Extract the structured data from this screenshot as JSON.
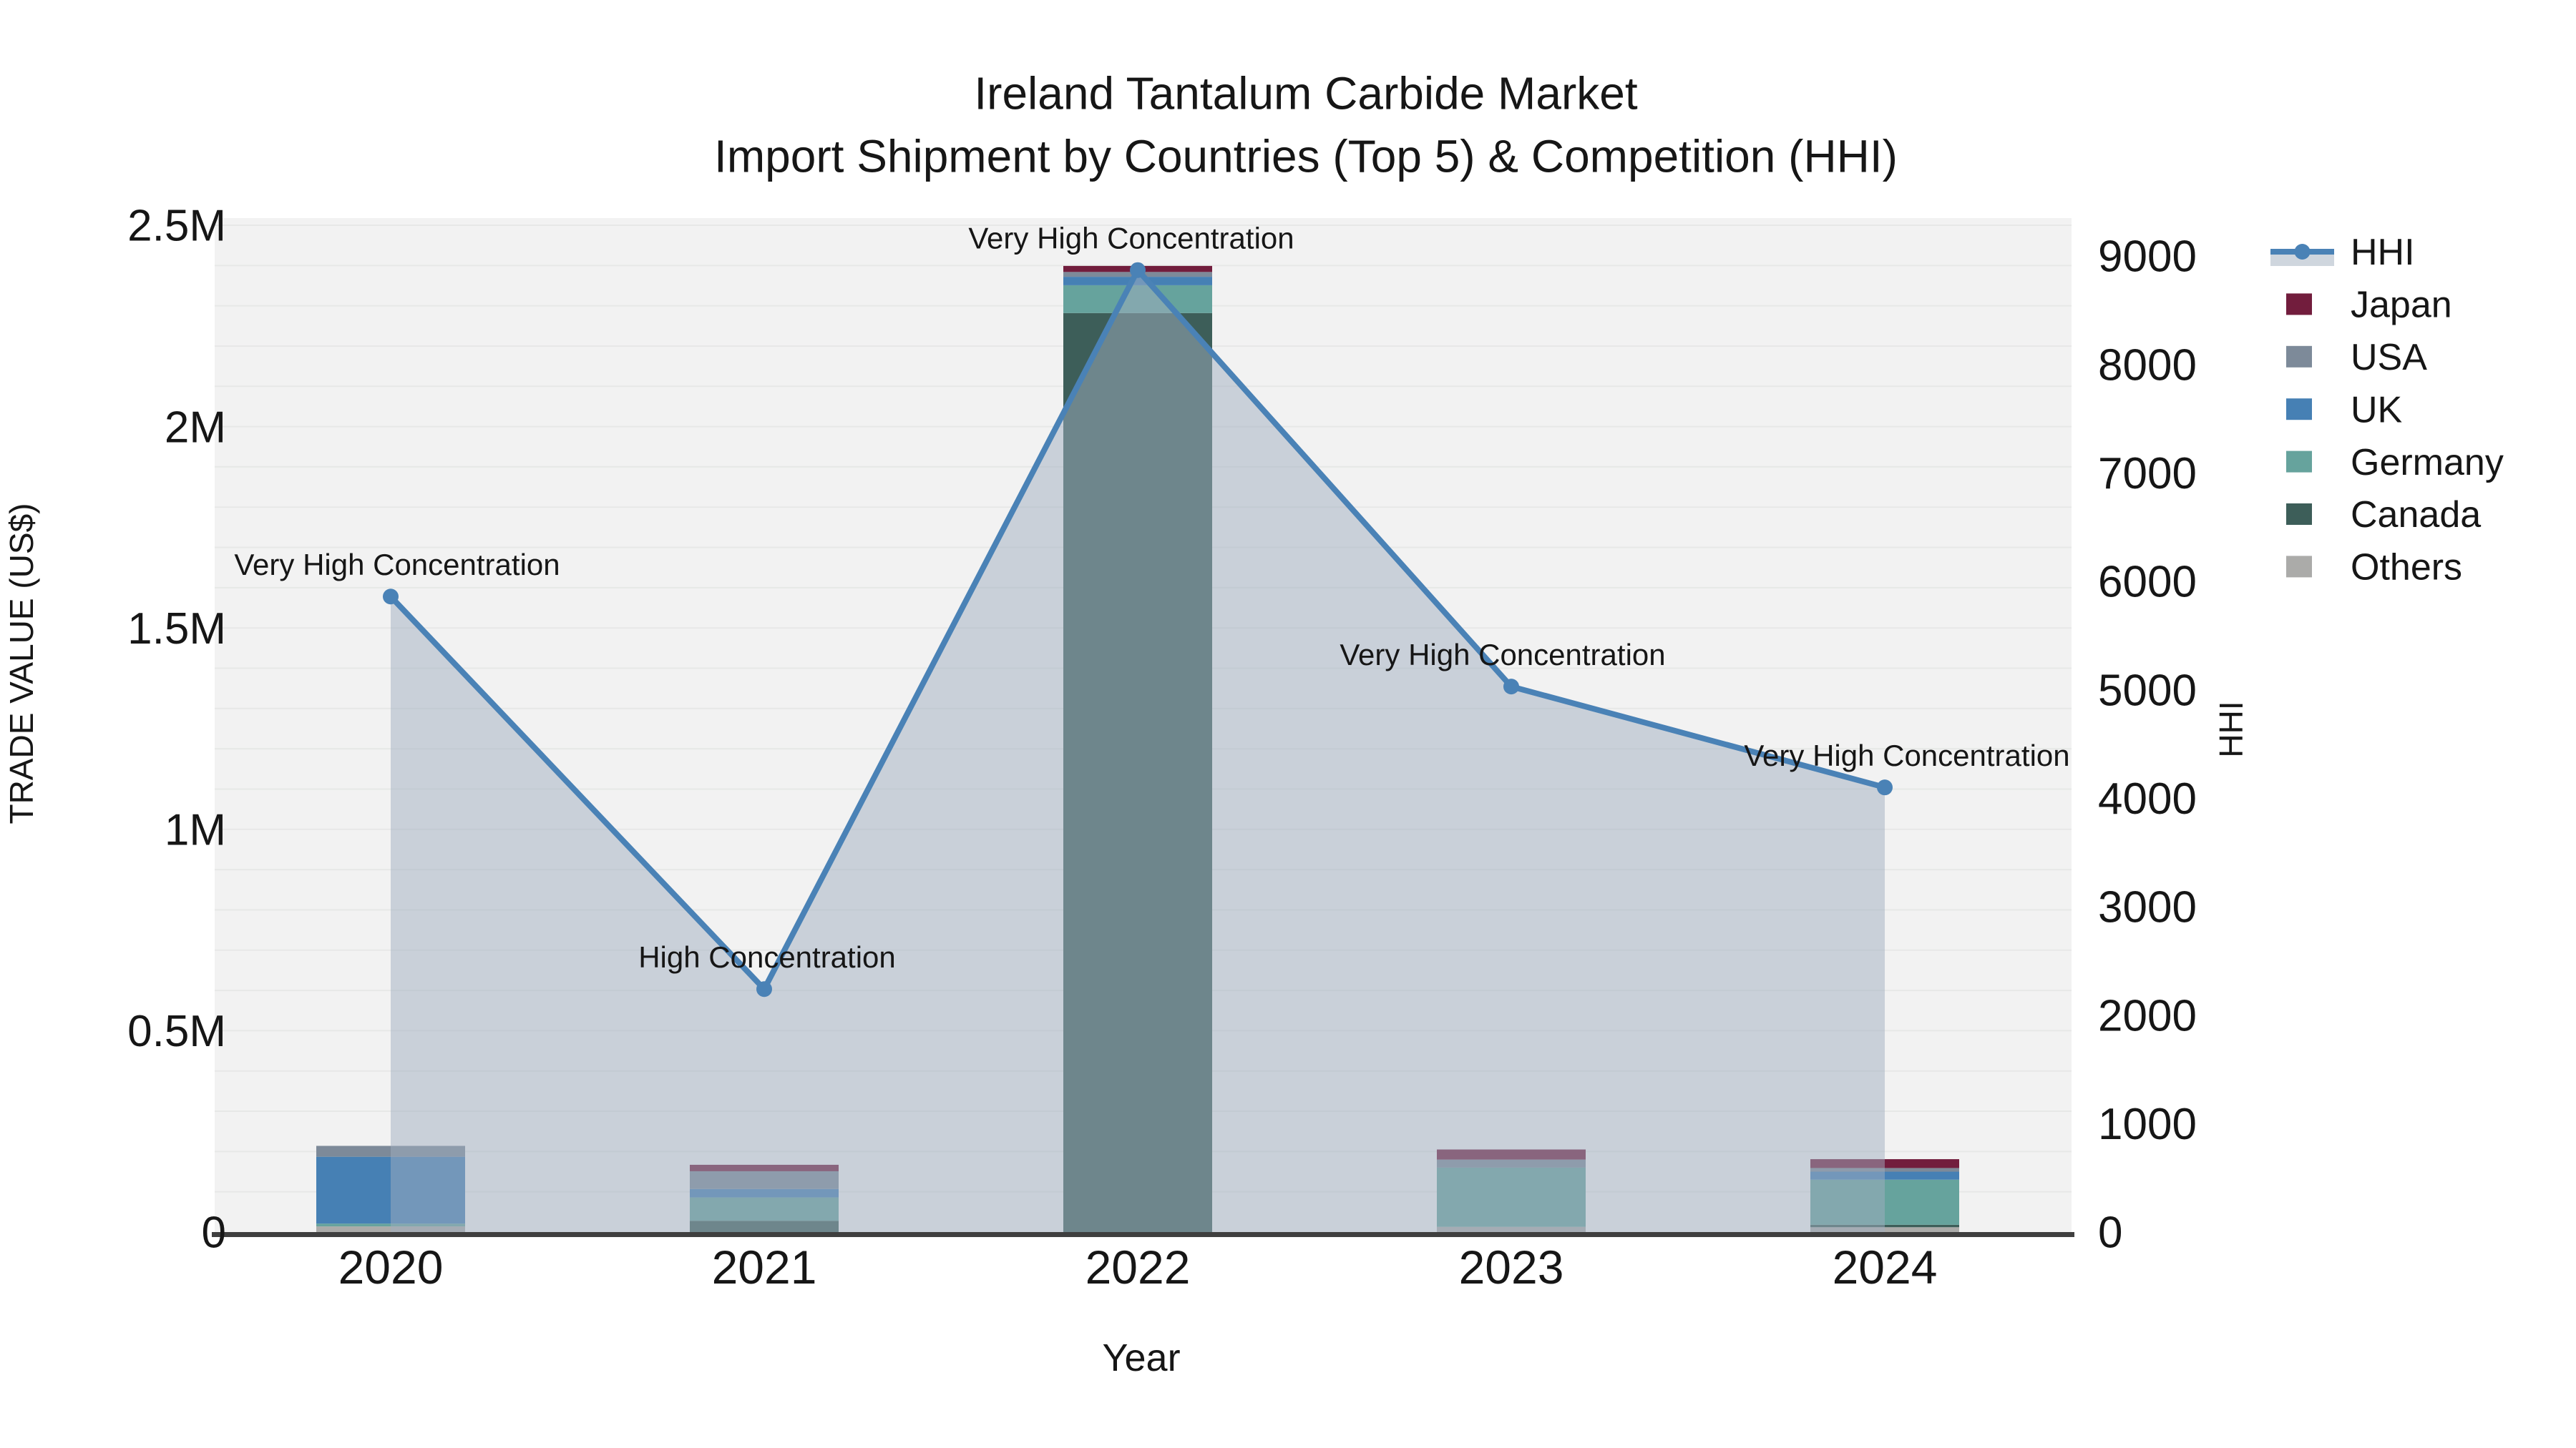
{
  "title": {
    "line1": "Ireland Tantalum Carbide Market",
    "line2": "Import Shipment by Countries (Top 5) & Competition (HHI)"
  },
  "axes": {
    "x": {
      "title": "Year",
      "ticks": [
        "2020",
        "2021",
        "2022",
        "2023",
        "2024"
      ]
    },
    "y_left": {
      "title": "TRADE VALUE (US$)",
      "tick_labels": [
        "0",
        "0.5M",
        "1M",
        "1.5M",
        "2M",
        "2.5M"
      ],
      "tick_values": [
        0,
        500000,
        1000000,
        1500000,
        2000000,
        2500000
      ],
      "range": [
        0,
        2500000
      ]
    },
    "y_right": {
      "title": "HHI",
      "tick_labels": [
        "0",
        "1000",
        "2000",
        "3000",
        "4000",
        "5000",
        "6000",
        "7000",
        "8000",
        "9000"
      ],
      "tick_values": [
        0,
        1000,
        2000,
        3000,
        4000,
        5000,
        6000,
        7000,
        8000,
        9000
      ],
      "range": [
        0,
        9000
      ]
    }
  },
  "legend": {
    "items": [
      {
        "label": "HHI",
        "type": "line",
        "color": "#4a82b6",
        "band_color": "#cfd6de"
      },
      {
        "label": "Japan",
        "type": "bar",
        "color": "#721d3d"
      },
      {
        "label": "USA",
        "type": "bar",
        "color": "#7d8a99"
      },
      {
        "label": "UK",
        "type": "bar",
        "color": "#4680b4"
      },
      {
        "label": "Germany",
        "type": "bar",
        "color": "#66a39d"
      },
      {
        "label": "Canada",
        "type": "bar",
        "color": "#3d5e59"
      },
      {
        "label": "Others",
        "type": "bar",
        "color": "#ababa9"
      }
    ]
  },
  "annotations": [
    {
      "year": "2020",
      "text": "Very High Concentration"
    },
    {
      "year": "2021",
      "text": "High Concentration"
    },
    {
      "year": "2022",
      "text": "Very High Concentration"
    },
    {
      "year": "2023",
      "text": "Very High Concentration"
    },
    {
      "year": "2024",
      "text": "Very High Concentration"
    }
  ],
  "colors": {
    "plot_background": "#f2f2f2",
    "gridline": "#e7e8e7",
    "axis_line": "#3f3f3f",
    "hhi_line": "#4a82b6",
    "hhi_area_fill": "rgba(160,174,192,0.5)",
    "text": "#161616"
  },
  "chart_data": [
    {
      "type": "bar",
      "stacked": true,
      "title": "Import Shipment by Countries (Top 5), Trade Value (US$)",
      "categories": [
        "2020",
        "2021",
        "2022",
        "2023",
        "2024"
      ],
      "stack_order_bottom_to_top": [
        "Others",
        "Canada",
        "Germany",
        "UK",
        "USA",
        "Japan"
      ],
      "series": [
        {
          "name": "Japan",
          "color": "#721d3d",
          "values": [
            0,
            16000,
            15000,
            25000,
            22000
          ]
        },
        {
          "name": "USA",
          "color": "#7d8a99",
          "values": [
            27000,
            44000,
            12000,
            20000,
            9000
          ]
        },
        {
          "name": "UK",
          "color": "#4680b4",
          "values": [
            166000,
            21000,
            21000,
            0,
            20000
          ]
        },
        {
          "name": "Germany",
          "color": "#66a39d",
          "values": [
            7000,
            58000,
            69000,
            147000,
            112000
          ]
        },
        {
          "name": "Canada",
          "color": "#3d5e59",
          "values": [
            0,
            28000,
            2282000,
            0,
            6000
          ]
        },
        {
          "name": "Others",
          "color": "#ababa9",
          "values": [
            14000,
            0,
            0,
            13000,
            12000
          ]
        }
      ],
      "totals": [
        214000,
        167000,
        2399000,
        205000,
        181000
      ],
      "ylabel": "TRADE VALUE (US$)",
      "ylim": [
        0,
        2500000
      ]
    },
    {
      "type": "line",
      "name": "HHI",
      "x": [
        "2020",
        "2021",
        "2022",
        "2023",
        "2024"
      ],
      "values": [
        5860,
        2240,
        8870,
        5030,
        4100
      ],
      "area": true,
      "marker": true,
      "ylabel": "HHI",
      "ylim": [
        0,
        9000
      ],
      "point_labels": [
        "Very High Concentration",
        "High Concentration",
        "Very High Concentration",
        "Very High Concentration",
        "Very High Concentration"
      ]
    }
  ]
}
